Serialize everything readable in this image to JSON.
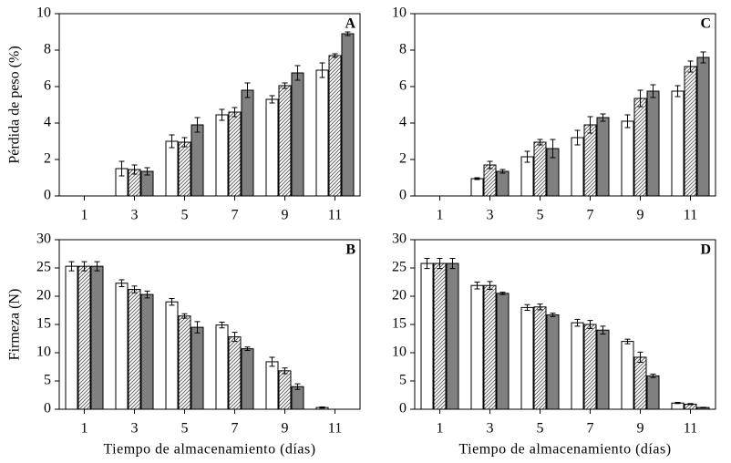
{
  "chart_data": [
    {
      "type": "bar",
      "label": "A",
      "ylabel": "Pérdida de peso (%)",
      "categories": [
        "1",
        "3",
        "5",
        "7",
        "9",
        "11"
      ],
      "series": [
        {
          "color": "#ffffff",
          "values": [
            null,
            1.5,
            3.0,
            4.45,
            5.3,
            6.9
          ],
          "errors": [
            null,
            0.4,
            0.35,
            0.3,
            0.2,
            0.4
          ]
        },
        {
          "color": "#ffffff",
          "pattern": "hatch",
          "values": [
            null,
            1.45,
            2.95,
            4.6,
            6.05,
            7.7
          ],
          "errors": [
            null,
            0.25,
            0.25,
            0.25,
            0.15,
            0.1
          ]
        },
        {
          "color": "#808080",
          "values": [
            null,
            1.35,
            3.9,
            5.8,
            6.75,
            8.9
          ],
          "errors": [
            null,
            0.2,
            0.4,
            0.4,
            0.4,
            0.1
          ]
        }
      ],
      "ylim": [
        0,
        10
      ],
      "yticks": [
        0,
        2,
        4,
        6,
        8,
        10
      ]
    },
    {
      "type": "bar",
      "label": "B",
      "ylabel": "Firmeza (N)",
      "xlabel": "Tiempo de almacenamiento (días)",
      "categories": [
        "1",
        "3",
        "5",
        "7",
        "9",
        "11"
      ],
      "series": [
        {
          "color": "#ffffff",
          "values": [
            25.3,
            22.3,
            19.0,
            14.9,
            8.4,
            0.3
          ],
          "errors": [
            0.8,
            0.6,
            0.6,
            0.5,
            0.8,
            0.1
          ]
        },
        {
          "color": "#ffffff",
          "pattern": "hatch",
          "values": [
            25.3,
            21.2,
            16.5,
            12.8,
            6.8,
            null
          ],
          "errors": [
            0.8,
            0.6,
            0.4,
            0.8,
            0.5,
            null
          ]
        },
        {
          "color": "#808080",
          "values": [
            25.3,
            20.3,
            14.5,
            10.7,
            4.0,
            null
          ],
          "errors": [
            0.8,
            0.6,
            1.0,
            0.3,
            0.5,
            null
          ]
        }
      ],
      "ylim": [
        0,
        30
      ],
      "yticks": [
        0,
        5,
        10,
        15,
        20,
        25,
        30
      ]
    },
    {
      "type": "bar",
      "label": "C",
      "categories": [
        "1",
        "3",
        "5",
        "7",
        "9",
        "11"
      ],
      "series": [
        {
          "color": "#ffffff",
          "values": [
            null,
            0.95,
            2.15,
            3.2,
            4.1,
            5.75
          ],
          "errors": [
            null,
            0.05,
            0.3,
            0.4,
            0.35,
            0.3
          ]
        },
        {
          "color": "#ffffff",
          "pattern": "hatch",
          "values": [
            null,
            1.7,
            2.95,
            3.9,
            5.35,
            7.1
          ],
          "errors": [
            null,
            0.2,
            0.15,
            0.45,
            0.45,
            0.3
          ]
        },
        {
          "color": "#808080",
          "values": [
            null,
            1.35,
            2.6,
            4.3,
            5.75,
            7.6
          ],
          "errors": [
            null,
            0.1,
            0.5,
            0.2,
            0.35,
            0.3
          ]
        }
      ],
      "ylim": [
        0,
        10
      ],
      "yticks": [
        0,
        2,
        4,
        6,
        8,
        10
      ]
    },
    {
      "type": "bar",
      "label": "D",
      "xlabel": "Tiempo de almacenamiento (días)",
      "categories": [
        "1",
        "3",
        "5",
        "7",
        "9",
        "11"
      ],
      "series": [
        {
          "color": "#ffffff",
          "values": [
            25.8,
            21.9,
            18.0,
            15.3,
            12.0,
            1.1
          ],
          "errors": [
            0.9,
            0.6,
            0.5,
            0.6,
            0.4,
            0.1
          ]
        },
        {
          "color": "#ffffff",
          "pattern": "hatch",
          "values": [
            25.8,
            21.9,
            18.1,
            15.0,
            9.2,
            0.9
          ],
          "errors": [
            0.9,
            0.7,
            0.5,
            0.7,
            0.9,
            0.1
          ]
        },
        {
          "color": "#808080",
          "values": [
            25.8,
            20.5,
            16.7,
            14.0,
            5.9,
            0.3
          ],
          "errors": [
            0.9,
            0.2,
            0.3,
            0.7,
            0.3,
            0.05
          ]
        }
      ],
      "ylim": [
        0,
        30
      ],
      "yticks": [
        0,
        5,
        10,
        15,
        20,
        25,
        30
      ]
    }
  ]
}
